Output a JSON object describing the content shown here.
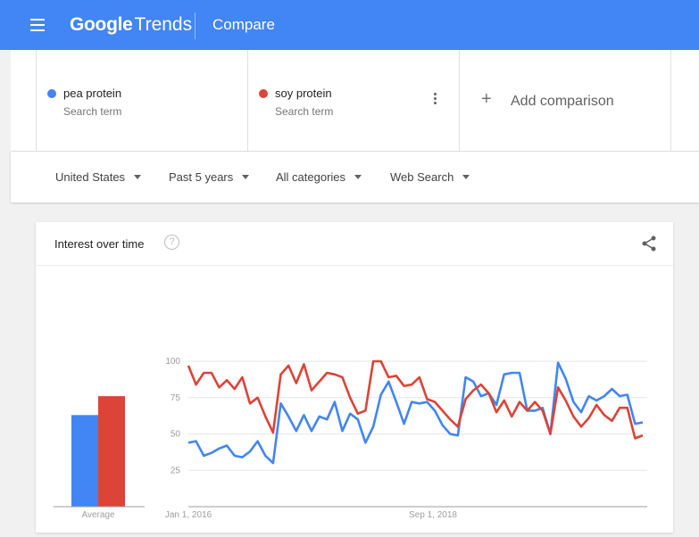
{
  "header": {
    "brand": "Google",
    "product": "Trends",
    "page_title": "Compare",
    "color": "#4285f4"
  },
  "terms": [
    {
      "label": "pea protein",
      "sub": "Search term",
      "color": "#4285f4"
    },
    {
      "label": "soy protein",
      "sub": "Search term",
      "color": "#db4437"
    }
  ],
  "add_comparison": {
    "icon": "plus-icon",
    "label": "Add comparison"
  },
  "filters": [
    {
      "label": "United States"
    },
    {
      "label": "Past 5 years"
    },
    {
      "label": "All categories"
    },
    {
      "label": "Web Search"
    }
  ],
  "card": {
    "title": "Interest over time",
    "help_icon": "?",
    "share_icon": "share-icon"
  },
  "chart_data": {
    "type": "line",
    "title": "Interest over time",
    "ylim": [
      0,
      100
    ],
    "y_ticks": [
      "100",
      "75",
      "50",
      "25"
    ],
    "x_ticks": [
      "Jan 1, 2016",
      "Sep 1, 2018"
    ],
    "grid": true,
    "average": {
      "label": "Average",
      "values": [
        63,
        76
      ]
    },
    "series": [
      {
        "name": "pea protein",
        "color": "#4285f4",
        "values": [
          44,
          45,
          35,
          37,
          40,
          42,
          35,
          34,
          38,
          45,
          35,
          30,
          71,
          62,
          52,
          63,
          52,
          62,
          60,
          72,
          52,
          64,
          60,
          44,
          55,
          77,
          86,
          72,
          57,
          72,
          71,
          72,
          66,
          56,
          50,
          49,
          89,
          86,
          76,
          78,
          70,
          91,
          92,
          92,
          66,
          66,
          68,
          50,
          99,
          88,
          72,
          65,
          76,
          73,
          76,
          81,
          76,
          77,
          57,
          58
        ]
      },
      {
        "name": "soy protein",
        "color": "#db4437",
        "values": [
          97,
          84,
          92,
          92,
          82,
          87,
          81,
          89,
          71,
          75,
          62,
          51,
          91,
          97,
          85,
          98,
          80,
          86,
          92,
          91,
          89,
          75,
          64,
          66,
          100,
          100,
          89,
          90,
          83,
          84,
          89,
          74,
          72,
          66,
          60,
          55,
          74,
          80,
          84,
          78,
          65,
          73,
          62,
          72,
          66,
          72,
          66,
          50,
          82,
          73,
          62,
          55,
          61,
          70,
          63,
          59,
          68,
          68,
          47,
          49
        ]
      }
    ]
  }
}
